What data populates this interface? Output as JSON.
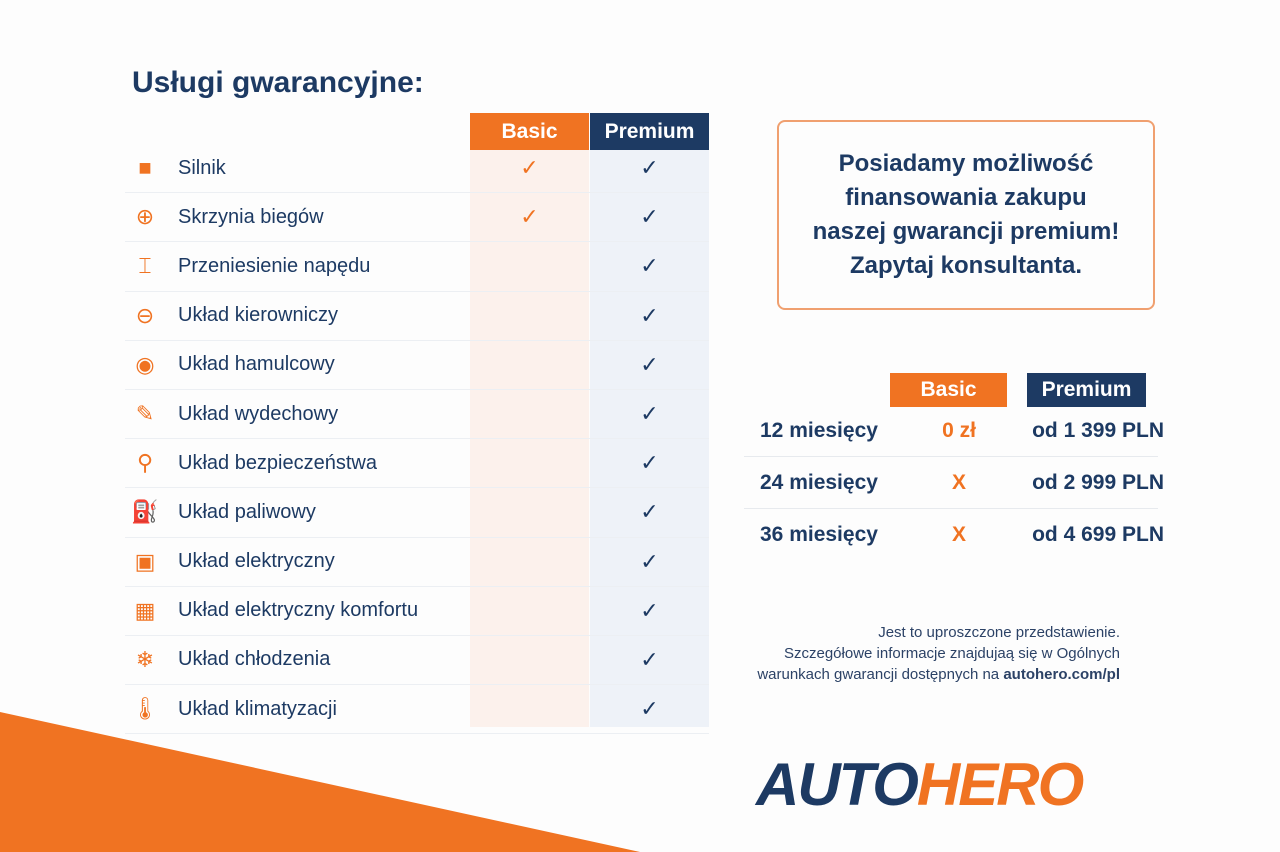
{
  "title": "Usługi gwarancyjne:",
  "colors": {
    "navy": "#1d3a63",
    "orange": "#f07322"
  },
  "coverage": {
    "headers": {
      "basic": "Basic",
      "premium": "Premium"
    },
    "check_mark": "✓",
    "rows": [
      {
        "label": "Silnik",
        "icon": "engine-icon",
        "basic": true,
        "premium": true
      },
      {
        "label": "Skrzynia biegów",
        "icon": "gearbox-icon",
        "basic": true,
        "premium": true
      },
      {
        "label": "Przeniesienie napędu",
        "icon": "drivetrain-icon",
        "basic": false,
        "premium": true
      },
      {
        "label": "Układ kierowniczy",
        "icon": "steering-wheel-icon",
        "basic": false,
        "premium": true
      },
      {
        "label": "Układ hamulcowy",
        "icon": "brake-disc-icon",
        "basic": false,
        "premium": true
      },
      {
        "label": "Układ wydechowy",
        "icon": "exhaust-icon",
        "basic": false,
        "premium": true
      },
      {
        "label": "Układ bezpieczeństwa",
        "icon": "seatbelt-icon",
        "basic": false,
        "premium": true
      },
      {
        "label": "Układ paliwowy",
        "icon": "fuel-pump-icon",
        "basic": false,
        "premium": true
      },
      {
        "label": "Układ elektryczny",
        "icon": "battery-icon",
        "basic": false,
        "premium": true
      },
      {
        "label": "Układ elektryczny komfortu",
        "icon": "chip-icon",
        "basic": false,
        "premium": true
      },
      {
        "label": "Układ chłodzenia",
        "icon": "snowflake-icon",
        "basic": false,
        "premium": true
      },
      {
        "label": "Układ klimatyzacji",
        "icon": "thermometer-icon",
        "basic": false,
        "premium": true
      }
    ]
  },
  "financing_box": {
    "lines": [
      "Posiadamy możliwość",
      "finansowania zakupu",
      "naszej gwarancji premium!",
      "Zapytaj konsultanta."
    ]
  },
  "pricing": {
    "headers": {
      "basic": "Basic",
      "premium": "Premium"
    },
    "rows": [
      {
        "period": "12 miesięcy",
        "basic": "0 zł",
        "premium": "od 1 399 PLN"
      },
      {
        "period": "24 miesięcy",
        "basic": "X",
        "premium": "od 2 999 PLN"
      },
      {
        "period": "36 miesięcy",
        "basic": "X",
        "premium": "od 4 699 PLN"
      }
    ]
  },
  "note": {
    "line1": "Jest to uproszczone przedstawienie.",
    "line2": "Szczegółowe informacje znajdujaą się w Ogólnych",
    "line3_prefix": "warunkach gwarancji dostępnych na ",
    "link": "autohero.com/pl"
  },
  "logo": {
    "part1": "AUTO",
    "part2": "HERO"
  }
}
